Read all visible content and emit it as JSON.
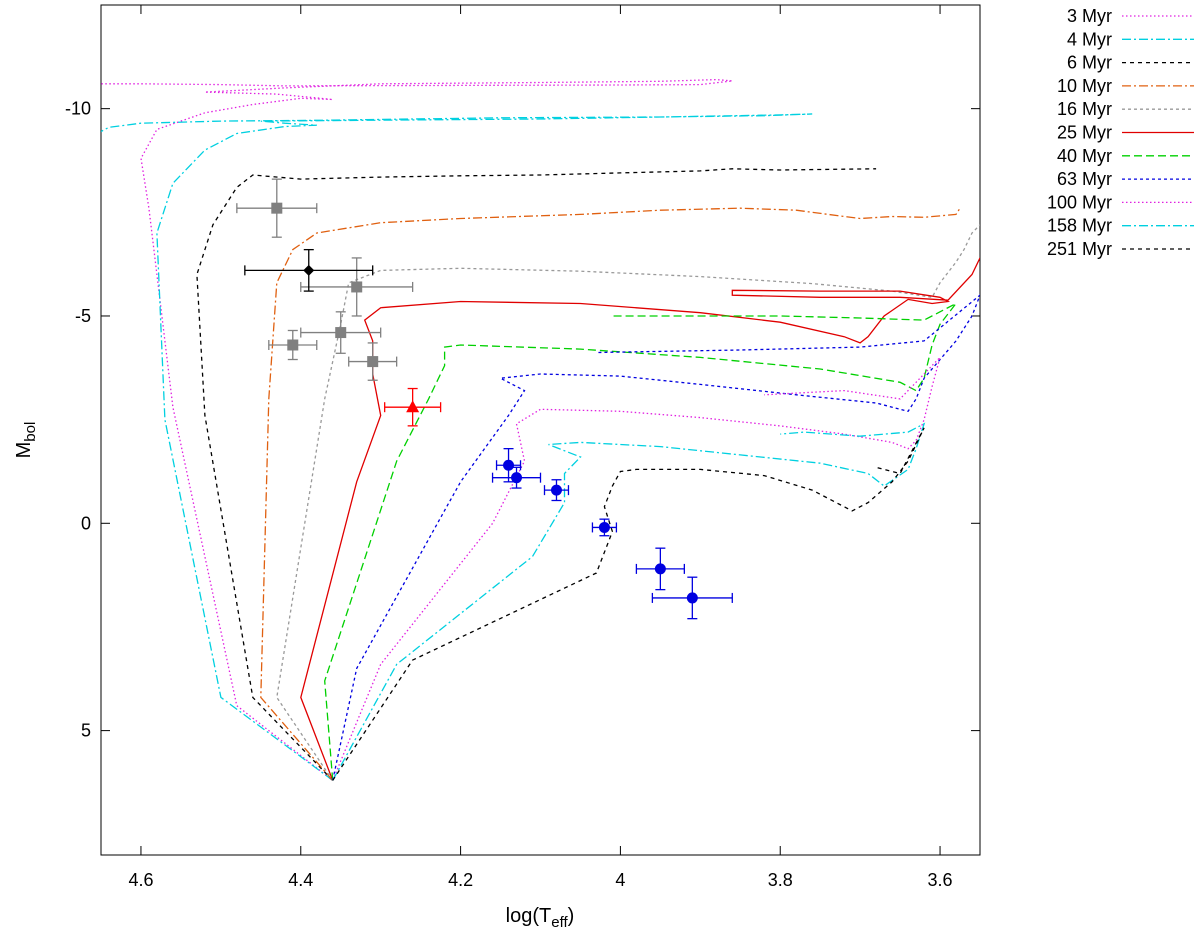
{
  "chart_data": {
    "type": "line",
    "title": "",
    "xlabel": "log(T",
    "xlabel_sub": "eff",
    "xlabel_close": ")",
    "ylabel": "M",
    "ylabel_sub": "bol",
    "xlim": [
      4.65,
      3.55
    ],
    "ylim": [
      -12.5,
      8.0
    ],
    "x_reversed": true,
    "y_reversed": true,
    "grid": false,
    "legend_position": "outside-right",
    "x_ticks": [
      4.6,
      4.4,
      4.2,
      4.0,
      3.8,
      3.6
    ],
    "x_tick_labels": [
      "4.6",
      "4.4",
      "4.2",
      "4",
      "3.8",
      "3.6"
    ],
    "y_ticks": [
      -10,
      -5,
      0,
      5
    ],
    "y_tick_labels": [
      "-10",
      "-5",
      "0",
      "5"
    ],
    "series": [
      {
        "name": "3 Myr",
        "color": "#e020e0",
        "dash": "1.5,2.5",
        "points": [
          [
            4.36,
            6.2
          ],
          [
            4.48,
            4.4
          ],
          [
            4.56,
            -2.8
          ],
          [
            4.59,
            -7.6
          ],
          [
            4.6,
            -8.8
          ],
          [
            4.58,
            -9.5
          ],
          [
            4.52,
            -9.9
          ],
          [
            4.46,
            -10.1
          ],
          [
            4.4,
            -10.25
          ],
          [
            4.36,
            -10.22
          ],
          [
            4.43,
            -10.35
          ],
          [
            4.52,
            -10.4
          ],
          [
            4.42,
            -10.5
          ],
          [
            4.3,
            -10.6
          ],
          [
            4.1,
            -10.63
          ],
          [
            3.95,
            -10.66
          ],
          [
            3.88,
            -10.7
          ],
          [
            3.86,
            -10.67
          ],
          [
            3.9,
            -10.58
          ],
          [
            4.0,
            -10.57
          ],
          [
            4.2,
            -10.56
          ],
          [
            4.42,
            -10.55
          ],
          [
            4.5,
            -10.58
          ],
          [
            4.6,
            -10.6
          ],
          [
            4.65,
            -10.6
          ]
        ]
      },
      {
        "name": "4 Myr",
        "color": "#00d0e0",
        "dash": "9,3,2,3",
        "points": [
          [
            4.36,
            6.2
          ],
          [
            4.5,
            4.2
          ],
          [
            4.57,
            -2.5
          ],
          [
            4.58,
            -7.0
          ],
          [
            4.56,
            -8.2
          ],
          [
            4.52,
            -9.0
          ],
          [
            4.48,
            -9.4
          ],
          [
            4.42,
            -9.57
          ],
          [
            4.38,
            -9.6
          ],
          [
            4.42,
            -9.65
          ],
          [
            4.45,
            -9.7
          ],
          [
            4.32,
            -9.72
          ],
          [
            4.1,
            -9.75
          ],
          [
            3.95,
            -9.8
          ],
          [
            3.8,
            -9.85
          ],
          [
            3.76,
            -9.87
          ],
          [
            3.82,
            -9.83
          ],
          [
            3.95,
            -9.8
          ],
          [
            4.15,
            -9.78
          ],
          [
            4.38,
            -9.72
          ],
          [
            4.5,
            -9.7
          ],
          [
            4.6,
            -9.65
          ],
          [
            4.64,
            -9.55
          ],
          [
            4.65,
            -9.45
          ]
        ]
      },
      {
        "name": "6 Myr",
        "color": "#000000",
        "dash": "4,4",
        "points": [
          [
            4.36,
            6.2
          ],
          [
            4.46,
            4.2
          ],
          [
            4.52,
            -2.6
          ],
          [
            4.53,
            -6.0
          ],
          [
            4.51,
            -7.2
          ],
          [
            4.48,
            -8.1
          ],
          [
            4.46,
            -8.4
          ],
          [
            4.4,
            -8.3
          ],
          [
            4.3,
            -8.35
          ],
          [
            4.2,
            -8.38
          ],
          [
            4.1,
            -8.4
          ],
          [
            4.0,
            -8.45
          ],
          [
            3.9,
            -8.5
          ],
          [
            3.86,
            -8.55
          ],
          [
            3.8,
            -8.52
          ],
          [
            3.72,
            -8.54
          ],
          [
            3.68,
            -8.55
          ]
        ]
      },
      {
        "name": "10 Myr",
        "color": "#e06010",
        "dash": "9,3,2,3",
        "points": [
          [
            4.36,
            6.2
          ],
          [
            4.45,
            4.2
          ],
          [
            4.44,
            -3.0
          ],
          [
            4.43,
            -5.8
          ],
          [
            4.41,
            -6.6
          ],
          [
            4.38,
            -7.0
          ],
          [
            4.3,
            -7.25
          ],
          [
            4.2,
            -7.35
          ],
          [
            4.05,
            -7.45
          ],
          [
            3.95,
            -7.55
          ],
          [
            3.85,
            -7.6
          ],
          [
            3.78,
            -7.55
          ],
          [
            3.72,
            -7.4
          ],
          [
            3.7,
            -7.35
          ],
          [
            3.66,
            -7.4
          ],
          [
            3.62,
            -7.38
          ],
          [
            3.58,
            -7.45
          ],
          [
            3.575,
            -7.6
          ]
        ]
      },
      {
        "name": "16 Myr",
        "color": "#999999",
        "dash": "3,3",
        "points": [
          [
            4.36,
            6.2
          ],
          [
            4.43,
            4.2
          ],
          [
            4.37,
            -3.0
          ],
          [
            4.35,
            -4.8
          ],
          [
            4.34,
            -5.8
          ],
          [
            4.3,
            -6.1
          ],
          [
            4.2,
            -6.15
          ],
          [
            4.05,
            -6.08
          ],
          [
            3.9,
            -5.95
          ],
          [
            3.76,
            -5.78
          ],
          [
            3.66,
            -5.6
          ],
          [
            3.61,
            -5.45
          ],
          [
            3.6,
            -5.8
          ],
          [
            3.58,
            -6.3
          ],
          [
            3.57,
            -6.6
          ],
          [
            3.56,
            -7.0
          ],
          [
            3.55,
            -7.2
          ]
        ]
      },
      {
        "name": "25 Myr",
        "color": "#e00000",
        "dash": "",
        "points": [
          [
            4.36,
            6.2
          ],
          [
            4.4,
            4.2
          ],
          [
            4.33,
            -1.0
          ],
          [
            4.3,
            -2.6
          ],
          [
            4.31,
            -3.6
          ],
          [
            4.31,
            -4.4
          ],
          [
            4.32,
            -4.9
          ],
          [
            4.3,
            -5.2
          ],
          [
            4.2,
            -5.35
          ],
          [
            4.05,
            -5.3
          ],
          [
            3.9,
            -5.08
          ],
          [
            3.8,
            -4.85
          ],
          [
            3.72,
            -4.5
          ],
          [
            3.7,
            -4.35
          ],
          [
            3.69,
            -4.5
          ],
          [
            3.67,
            -5.0
          ],
          [
            3.64,
            -5.4
          ],
          [
            3.61,
            -5.3
          ],
          [
            3.59,
            -5.35
          ],
          [
            3.6,
            -5.45
          ],
          [
            3.65,
            -5.6
          ],
          [
            3.75,
            -5.6
          ],
          [
            3.86,
            -5.62
          ],
          [
            3.86,
            -5.5
          ],
          [
            3.75,
            -5.45
          ],
          [
            3.65,
            -5.45
          ],
          [
            3.59,
            -5.38
          ],
          [
            3.56,
            -6.0
          ],
          [
            3.55,
            -6.4
          ]
        ]
      },
      {
        "name": "40 Myr",
        "color": "#00d000",
        "dash": "8,4",
        "points": [
          [
            4.36,
            6.2
          ],
          [
            4.37,
            3.8
          ],
          [
            4.28,
            -1.5
          ],
          [
            4.24,
            -3.0
          ],
          [
            4.22,
            -3.8
          ],
          [
            4.22,
            -4.25
          ],
          [
            4.2,
            -4.3
          ],
          [
            4.05,
            -4.2
          ],
          [
            3.9,
            -4.0
          ],
          [
            3.75,
            -3.72
          ],
          [
            3.65,
            -3.4
          ],
          [
            3.63,
            -3.2
          ],
          [
            3.62,
            -3.5
          ],
          [
            3.61,
            -4.3
          ],
          [
            3.6,
            -4.8
          ],
          [
            3.58,
            -5.3
          ],
          [
            3.62,
            -4.9
          ],
          [
            3.7,
            -4.95
          ],
          [
            3.8,
            -5.0
          ],
          [
            3.9,
            -5.0
          ],
          [
            4.01,
            -5.0
          ]
        ]
      },
      {
        "name": "63 Myr",
        "color": "#0000e0",
        "dash": "3,3",
        "points": [
          [
            4.36,
            6.2
          ],
          [
            4.33,
            3.5
          ],
          [
            4.2,
            -1.0
          ],
          [
            4.14,
            -2.6
          ],
          [
            4.12,
            -3.2
          ],
          [
            4.15,
            -3.5
          ],
          [
            4.1,
            -3.6
          ],
          [
            4.0,
            -3.55
          ],
          [
            3.9,
            -3.35
          ],
          [
            3.78,
            -3.1
          ],
          [
            3.68,
            -2.9
          ],
          [
            3.64,
            -2.7
          ],
          [
            3.63,
            -3.0
          ],
          [
            3.62,
            -3.5
          ],
          [
            3.58,
            -4.4
          ],
          [
            3.56,
            -5.0
          ],
          [
            3.55,
            -5.5
          ],
          [
            3.62,
            -4.4
          ],
          [
            3.7,
            -4.25
          ],
          [
            3.85,
            -4.18
          ],
          [
            4.03,
            -4.12
          ]
        ]
      },
      {
        "name": "100 Myr",
        "color": "#e020e0",
        "dash": "1.5,2.5",
        "points": [
          [
            4.36,
            6.2
          ],
          [
            4.3,
            3.4
          ],
          [
            4.16,
            0.0
          ],
          [
            4.12,
            -1.5
          ],
          [
            4.13,
            -2.4
          ],
          [
            4.1,
            -2.75
          ],
          [
            4.0,
            -2.7
          ],
          [
            3.9,
            -2.55
          ],
          [
            3.8,
            -2.35
          ],
          [
            3.72,
            -2.15
          ],
          [
            3.66,
            -1.95
          ],
          [
            3.64,
            -1.8
          ],
          [
            3.63,
            -2.0
          ],
          [
            3.62,
            -2.5
          ],
          [
            3.61,
            -3.3
          ],
          [
            3.6,
            -4.0
          ],
          [
            3.65,
            -3.0
          ],
          [
            3.72,
            -3.2
          ],
          [
            3.82,
            -3.1
          ]
        ]
      },
      {
        "name": "158 Myr",
        "color": "#00d0e0",
        "dash": "9,3,2,3",
        "points": [
          [
            4.36,
            6.2
          ],
          [
            4.28,
            3.4
          ],
          [
            4.11,
            0.8
          ],
          [
            4.07,
            -0.5
          ],
          [
            4.07,
            -1.2
          ],
          [
            4.05,
            -1.6
          ],
          [
            4.09,
            -1.9
          ],
          [
            4.05,
            -1.95
          ],
          [
            3.95,
            -1.85
          ],
          [
            3.85,
            -1.65
          ],
          [
            3.75,
            -1.45
          ],
          [
            3.69,
            -1.2
          ],
          [
            3.67,
            -0.9
          ],
          [
            3.64,
            -1.3
          ],
          [
            3.63,
            -1.8
          ],
          [
            3.62,
            -2.4
          ],
          [
            3.64,
            -2.2
          ],
          [
            3.7,
            -2.1
          ],
          [
            3.77,
            -2.2
          ],
          [
            3.8,
            -2.15
          ]
        ]
      },
      {
        "name": "251 Myr",
        "color": "#000000",
        "dash": "4,4",
        "points": [
          [
            4.36,
            6.2
          ],
          [
            4.26,
            3.3
          ],
          [
            4.03,
            1.2
          ],
          [
            4.01,
            0.2
          ],
          [
            4.02,
            -0.4
          ],
          [
            4.01,
            -0.9
          ],
          [
            4.0,
            -1.25
          ],
          [
            3.98,
            -1.3
          ],
          [
            3.9,
            -1.3
          ],
          [
            3.82,
            -1.15
          ],
          [
            3.76,
            -0.8
          ],
          [
            3.71,
            -0.3
          ],
          [
            3.69,
            -0.5
          ],
          [
            3.66,
            -1.0
          ],
          [
            3.64,
            -1.5
          ],
          [
            3.63,
            -1.9
          ],
          [
            3.62,
            -2.3
          ],
          [
            3.65,
            -1.2
          ],
          [
            3.68,
            -1.35
          ]
        ]
      }
    ],
    "points": [
      {
        "marker": "square",
        "color": "#808080",
        "x": 4.43,
        "y": -7.6,
        "xerr": 0.05,
        "yerr": 0.7
      },
      {
        "marker": "square",
        "color": "#808080",
        "x": 4.41,
        "y": -4.3,
        "xerr": 0.03,
        "yerr": 0.35
      },
      {
        "marker": "square",
        "color": "#808080",
        "x": 4.35,
        "y": -4.6,
        "xerr": 0.05,
        "yerr": 0.5
      },
      {
        "marker": "square",
        "color": "#808080",
        "x": 4.33,
        "y": -5.7,
        "xerr": 0.07,
        "yerr": 0.7
      },
      {
        "marker": "square",
        "color": "#808080",
        "x": 4.31,
        "y": -3.9,
        "xerr": 0.03,
        "yerr": 0.45
      },
      {
        "marker": "diamond",
        "color": "#000000",
        "x": 4.39,
        "y": -6.1,
        "xerr": 0.08,
        "yerr": 0.5
      },
      {
        "marker": "triangle",
        "color": "#ff0000",
        "x": 4.26,
        "y": -2.8,
        "xerr": 0.035,
        "yerr": 0.45
      },
      {
        "marker": "circle",
        "color": "#0000e0",
        "x": 4.14,
        "y": -1.4,
        "xerr": 0.015,
        "yerr": 0.4
      },
      {
        "marker": "circle",
        "color": "#0000e0",
        "x": 4.13,
        "y": -1.1,
        "xerr": 0.03,
        "yerr": 0.25
      },
      {
        "marker": "circle",
        "color": "#0000e0",
        "x": 4.08,
        "y": -0.8,
        "xerr": 0.015,
        "yerr": 0.25
      },
      {
        "marker": "circle",
        "color": "#0000e0",
        "x": 4.02,
        "y": 0.1,
        "xerr": 0.015,
        "yerr": 0.2
      },
      {
        "marker": "circle",
        "color": "#0000e0",
        "x": 3.95,
        "y": 1.1,
        "xerr": 0.03,
        "yerr": 0.5
      },
      {
        "marker": "circle",
        "color": "#0000e0",
        "x": 3.91,
        "y": 1.8,
        "xerr": 0.05,
        "yerr": 0.5
      }
    ]
  }
}
